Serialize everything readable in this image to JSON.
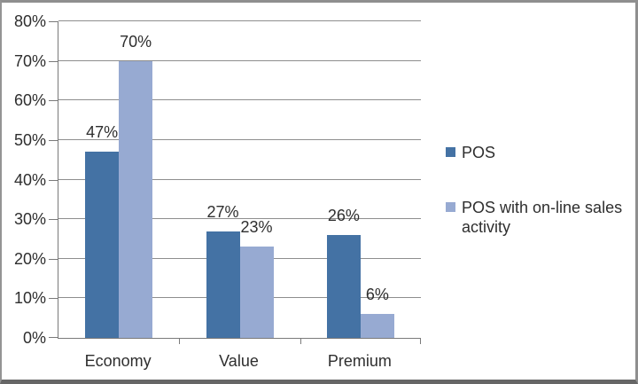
{
  "chart_data": {
    "type": "bar",
    "title": "",
    "categories": [
      "Economy",
      "Value",
      "Premium"
    ],
    "series": [
      {
        "key": "pos",
        "name": "POS",
        "color": "#4472A4",
        "values": [
          47,
          27,
          26
        ],
        "labels": [
          "47%",
          "27%",
          "26%"
        ]
      },
      {
        "key": "pos-online",
        "name": "POS with on-line sales activity",
        "color": "#97AAD2",
        "values": [
          70,
          23,
          6
        ],
        "labels": [
          "70%",
          "23%",
          "6%"
        ]
      }
    ],
    "y_axis": {
      "min": 0,
      "max": 80,
      "step": 10,
      "tick_labels": [
        "0%",
        "10%",
        "20%",
        "30%",
        "40%",
        "50%",
        "60%",
        "70%",
        "80%"
      ]
    },
    "x_axis": {
      "tick_labels": [
        "Economy",
        "Value",
        "Premium"
      ]
    },
    "grid": true,
    "legend_position": "right",
    "colors": {
      "gridline": "#8E8E8E",
      "axis": "#7A7A7A",
      "text": "#2E2E2E",
      "background": "#FFFFFF",
      "frame_border": "#8F8F8F",
      "frame_border_bottom": "#666666"
    }
  }
}
